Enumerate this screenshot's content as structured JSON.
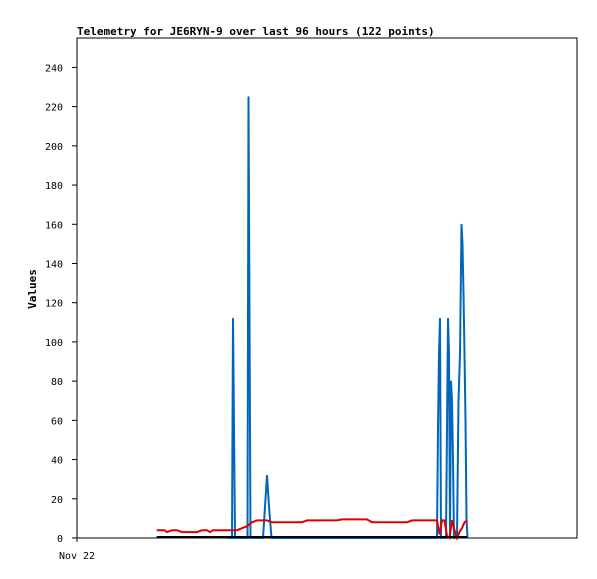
{
  "chart_data": {
    "type": "line",
    "title": "Telemetry for JE6RYN-9 over last 96 hours (122 points)",
    "xlabel": "",
    "ylabel": "Values",
    "ylim": [
      0,
      255
    ],
    "xlim": [
      0,
      100
    ],
    "yticks": [
      0,
      20,
      40,
      60,
      80,
      100,
      120,
      140,
      160,
      180,
      200,
      220,
      240
    ],
    "xticks": [
      {
        "x": 0,
        "label": "Nov 22"
      }
    ],
    "grid": false,
    "legend": "none",
    "series": [
      {
        "color": "#0066bb",
        "points": [
          [
            30,
            0
          ],
          [
            31.0,
            0
          ],
          [
            31.2,
            112
          ],
          [
            31.4,
            56
          ],
          [
            31.6,
            0
          ],
          [
            34.1,
            0
          ],
          [
            34.3,
            225
          ],
          [
            34.5,
            112
          ],
          [
            34.7,
            0
          ],
          [
            37.2,
            0
          ],
          [
            37.6,
            16
          ],
          [
            38.0,
            32
          ],
          [
            38.4,
            16
          ],
          [
            38.9,
            0
          ],
          [
            72.0,
            0
          ],
          [
            72.2,
            56
          ],
          [
            72.4,
            94
          ],
          [
            72.6,
            112
          ],
          [
            72.8,
            0
          ],
          [
            73.8,
            0
          ],
          [
            74.0,
            56
          ],
          [
            74.2,
            112
          ],
          [
            74.4,
            94
          ],
          [
            74.6,
            0
          ],
          [
            74.8,
            80
          ],
          [
            75.0,
            70
          ],
          [
            75.2,
            40
          ],
          [
            75.4,
            0
          ],
          [
            76.0,
            0
          ],
          [
            76.3,
            70
          ],
          [
            76.6,
            94
          ],
          [
            76.9,
            160
          ],
          [
            77.1,
            150
          ],
          [
            77.3,
            125
          ],
          [
            77.5,
            94
          ],
          [
            77.7,
            60
          ],
          [
            77.9,
            10
          ],
          [
            78.1,
            0
          ]
        ]
      },
      {
        "color": "#dd0000",
        "points": [
          [
            16,
            4
          ],
          [
            17.5,
            4
          ],
          [
            18,
            3
          ],
          [
            19,
            4
          ],
          [
            20,
            4
          ],
          [
            21,
            3
          ],
          [
            22,
            3
          ],
          [
            24,
            3
          ],
          [
            25,
            4
          ],
          [
            26,
            4
          ],
          [
            26.6,
            3
          ],
          [
            27.2,
            4
          ],
          [
            28,
            4
          ],
          [
            30,
            4
          ],
          [
            32,
            4
          ],
          [
            33,
            5
          ],
          [
            34,
            6
          ],
          [
            35,
            8
          ],
          [
            36,
            9
          ],
          [
            38,
            9
          ],
          [
            39,
            8
          ],
          [
            41,
            8
          ],
          [
            45,
            8
          ],
          [
            46,
            9
          ],
          [
            52,
            9
          ],
          [
            53,
            9.5
          ],
          [
            58,
            9.5
          ],
          [
            59,
            8
          ],
          [
            66,
            8
          ],
          [
            67,
            9
          ],
          [
            71,
            9
          ],
          [
            72,
            9
          ],
          [
            72.5,
            2
          ],
          [
            73,
            9
          ],
          [
            73.5,
            9
          ],
          [
            74.0,
            1
          ],
          [
            74.5,
            0
          ],
          [
            75.0,
            9
          ],
          [
            75.5,
            4
          ],
          [
            76,
            0
          ],
          [
            76.5,
            3
          ],
          [
            77,
            5
          ],
          [
            77.5,
            8
          ],
          [
            78,
            9
          ]
        ]
      },
      {
        "color": "#000000",
        "points": [
          [
            16,
            0.5
          ],
          [
            78,
            0.5
          ]
        ]
      }
    ]
  }
}
